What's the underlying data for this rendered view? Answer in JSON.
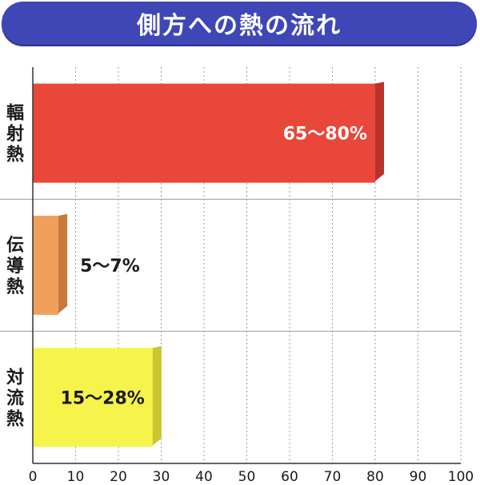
{
  "title": "側方への熱の流れ",
  "chart_data": {
    "type": "bar",
    "orientation": "horizontal",
    "title": "側方への熱の流れ",
    "xlim": [
      0,
      100
    ],
    "x_ticks": [
      "0",
      "10",
      "20",
      "30",
      "40",
      "50",
      "60",
      "70",
      "80",
      "90",
      "100"
    ],
    "grid": true,
    "categories": [
      "輻射熱",
      "伝導熱",
      "対流熱"
    ],
    "bars": [
      {
        "category": "輻射熱",
        "low": 65,
        "high": 80,
        "value": 80,
        "label": "65〜80%",
        "color": "#e8473a",
        "side": "#b83328",
        "label_color": "#ffffff",
        "label_inside": true
      },
      {
        "category": "伝導熱",
        "low": 5,
        "high": 7,
        "value": 6,
        "label": "5〜7%",
        "color": "#f0a05a",
        "side": "#c87a3a",
        "label_color": "#1a1a1a",
        "label_inside": false
      },
      {
        "category": "対流熱",
        "low": 15,
        "high": 28,
        "value": 28,
        "label": "15〜28%",
        "color": "#f6f44a",
        "side": "#c9c630",
        "label_color": "#1a1a1a",
        "label_inside": true
      }
    ]
  }
}
